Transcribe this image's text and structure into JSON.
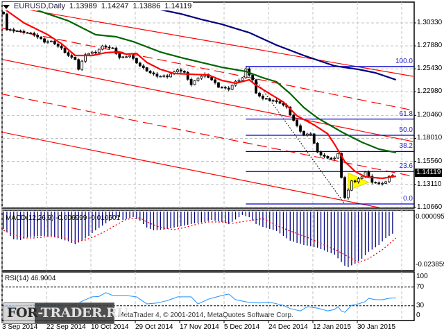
{
  "header": {
    "symbol": "EURUSD,Daily",
    "open": "1.13989",
    "high": "1.14247",
    "low": "1.13886",
    "close": "1.14119"
  },
  "price_axis": [
    "1.30330",
    "1.27880",
    "1.25430",
    "1.22980",
    "1.20460",
    "1.18010",
    "1.15560",
    "1.13110",
    "1.10660"
  ],
  "current_price": "1.14119",
  "macd": {
    "label": "MACD(12,26,9) -0.006999 -0.010601",
    "axis_top": "0.000095",
    "axis_bottom": "-0.023859"
  },
  "rsi": {
    "label": "RSI(14) 46.9004",
    "axis": [
      "100",
      "70",
      "30",
      "0"
    ]
  },
  "dates": [
    "3 Sep 2014",
    "22 Sep 2014",
    "10 Oct 2014",
    "29 Oct 2014",
    "17 Nov 2014",
    "5 Dec 2014",
    "24 Dec 2014",
    "12 Jan 2015",
    "30 Jan 2015"
  ],
  "watermark": {
    "part1": "FOR",
    "part2": "-TRADER.RU"
  },
  "copyright": "MetaTrader 4, © 2001-2014, MetaQuotes Software Corp.",
  "colors": {
    "ma_fast": "#ff0000",
    "ma_mid": "#006400",
    "ma_slow": "#000080",
    "channel": "#ff0000",
    "fib": "#0000cc",
    "macd_hist": "#000080",
    "macd_signal": "#ff0000",
    "rsi": "#1e90ff"
  },
  "chart_data": {
    "type": "candlestick",
    "title": "EURUSD,Daily",
    "bars": 115,
    "ylim": [
      1.1,
      1.32
    ],
    "close_anchors": [
      [
        0,
        1.3129
      ],
      [
        1,
        1.2959
      ],
      [
        5,
        1.2944
      ],
      [
        9,
        1.2907
      ],
      [
        12,
        1.2833
      ],
      [
        14,
        1.2833
      ],
      [
        17,
        1.2759
      ],
      [
        19,
        1.2685
      ],
      [
        21,
        1.2648
      ],
      [
        22,
        1.2537
      ],
      [
        24,
        1.27
      ],
      [
        27,
        1.2722
      ],
      [
        29,
        1.2781
      ],
      [
        32,
        1.2759
      ],
      [
        34,
        1.2663
      ],
      [
        37,
        1.2685
      ],
      [
        40,
        1.2574
      ],
      [
        43,
        1.25
      ],
      [
        45,
        1.2463
      ],
      [
        48,
        1.2463
      ],
      [
        51,
        1.2537
      ],
      [
        53,
        1.25
      ],
      [
        55,
        1.2374
      ],
      [
        57,
        1.2448
      ],
      [
        59,
        1.2478
      ],
      [
        61,
        1.2426
      ],
      [
        63,
        1.2352
      ],
      [
        66,
        1.233
      ],
      [
        68,
        1.2404
      ],
      [
        70,
        1.2448
      ],
      [
        71,
        1.2537
      ],
      [
        73,
        1.2426
      ],
      [
        74,
        1.2278
      ],
      [
        76,
        1.2226
      ],
      [
        79,
        1.2204
      ],
      [
        81,
        1.2181
      ],
      [
        83,
        1.213
      ],
      [
        84,
        1.2056
      ],
      [
        86,
        1.193
      ],
      [
        88,
        1.1834
      ],
      [
        90,
        1.1849
      ],
      [
        92,
        1.1649
      ],
      [
        95,
        1.159
      ],
      [
        97,
        1.159
      ],
      [
        98,
        1.1634
      ],
      [
        99,
        1.139
      ],
      [
        100,
        1.1168
      ],
      [
        101,
        1.1242
      ],
      [
        102,
        1.1353
      ],
      [
        103,
        1.1338
      ],
      [
        105,
        1.139
      ],
      [
        106,
        1.1442
      ],
      [
        108,
        1.1338
      ],
      [
        110,
        1.1316
      ],
      [
        112,
        1.1338
      ],
      [
        113,
        1.139
      ],
      [
        114,
        1.14119
      ]
    ],
    "ma_fast": [
      [
        0,
        1.3188
      ],
      [
        6,
        1.3033
      ],
      [
        13,
        1.2907
      ],
      [
        17,
        1.2811
      ],
      [
        21,
        1.2685
      ],
      [
        26,
        1.2685
      ],
      [
        30,
        1.2715
      ],
      [
        33,
        1.2722
      ],
      [
        36,
        1.27
      ],
      [
        39,
        1.2707
      ],
      [
        42,
        1.2611
      ],
      [
        46,
        1.2537
      ],
      [
        50,
        1.2493
      ],
      [
        55,
        1.2485
      ],
      [
        60,
        1.2478
      ],
      [
        64,
        1.2419
      ],
      [
        68,
        1.2389
      ],
      [
        72,
        1.2426
      ],
      [
        74,
        1.2367
      ],
      [
        78,
        1.2278
      ],
      [
        82,
        1.2189
      ],
      [
        86,
        1.2041
      ],
      [
        91,
        1.1945
      ],
      [
        95,
        1.1849
      ],
      [
        97,
        1.1738
      ],
      [
        100,
        1.1553
      ],
      [
        103,
        1.1449
      ],
      [
        106,
        1.139
      ],
      [
        111,
        1.1375
      ],
      [
        115,
        1.1397
      ]
    ],
    "ma_mid": [
      [
        10,
        1.3166
      ],
      [
        19,
        1.3055
      ],
      [
        27,
        1.2907
      ],
      [
        33,
        1.2885
      ],
      [
        38,
        1.2833
      ],
      [
        46,
        1.2722
      ],
      [
        52,
        1.2663
      ],
      [
        58,
        1.2611
      ],
      [
        64,
        1.2559
      ],
      [
        71,
        1.2515
      ],
      [
        76,
        1.2448
      ],
      [
        80,
        1.2404
      ],
      [
        84,
        1.2278
      ],
      [
        88,
        1.213
      ],
      [
        92,
        1.2019
      ],
      [
        99,
        1.1871
      ],
      [
        105,
        1.176
      ],
      [
        110,
        1.1686
      ],
      [
        115,
        1.1649
      ]
    ],
    "ma_slow": [
      [
        46,
        1.3174
      ],
      [
        52,
        1.3129
      ],
      [
        58,
        1.307
      ],
      [
        64,
        1.3018
      ],
      [
        72,
        1.2929
      ],
      [
        80,
        1.2796
      ],
      [
        88,
        1.2685
      ],
      [
        97,
        1.2574
      ],
      [
        104,
        1.2537
      ],
      [
        109,
        1.25
      ],
      [
        115,
        1.2426
      ]
    ],
    "channel_lines": [
      {
        "style": "solid",
        "from": [
          -1,
          1.3225
        ],
        "to": [
          120,
          1.2463
        ]
      },
      {
        "style": "dashed",
        "from": [
          -1,
          1.2981
        ],
        "to": [
          120,
          1.21
        ]
      },
      {
        "style": "solid",
        "from": [
          -1,
          1.2648
        ],
        "to": [
          120,
          1.1767
        ]
      },
      {
        "style": "dashed",
        "from": [
          -1,
          1.2278
        ],
        "to": [
          120,
          1.1397
        ]
      },
      {
        "style": "solid",
        "from": [
          -1,
          1.1871
        ],
        "to": [
          120,
          1.099
        ]
      }
    ],
    "fibonacci": {
      "from_bar": 71,
      "high": 1.2567,
      "low": 1.1101,
      "levels": [
        {
          "label": "100.0",
          "ratio": 1.0
        },
        {
          "label": "61.8",
          "ratio": 0.618
        },
        {
          "label": "50.0",
          "ratio": 0.5
        },
        {
          "label": "38.2",
          "ratio": 0.382
        },
        {
          "label": "23.6",
          "ratio": 0.236
        },
        {
          "label": "0.0",
          "ratio": 0.0
        }
      ]
    },
    "trendline": {
      "from": [
        71,
        1.2567
      ],
      "to": [
        100,
        1.1101
      ]
    },
    "triangle": [
      [
        101,
        1.1434
      ],
      [
        107,
        1.1331
      ],
      [
        101,
        1.1248
      ]
    ],
    "macd_hist": [
      [
        0,
        -0.0077
      ],
      [
        1,
        -0.0092
      ],
      [
        2,
        -0.0108
      ],
      [
        3,
        -0.0123
      ],
      [
        5,
        -0.0126
      ],
      [
        7,
        -0.0114
      ],
      [
        11,
        -0.0108
      ],
      [
        14,
        -0.0108
      ],
      [
        17,
        -0.0123
      ],
      [
        19,
        -0.0132
      ],
      [
        21,
        -0.0145
      ],
      [
        23,
        -0.0129
      ],
      [
        25,
        -0.0108
      ],
      [
        27,
        -0.0083
      ],
      [
        30,
        -0.0052
      ],
      [
        32,
        -0.0031
      ],
      [
        34,
        -0.0025
      ],
      [
        35,
        -0.0037
      ],
      [
        38,
        -0.0025
      ],
      [
        40,
        -0.004
      ],
      [
        42,
        -0.0071
      ],
      [
        44,
        -0.0083
      ],
      [
        47,
        -0.008
      ],
      [
        50,
        -0.0071
      ],
      [
        53,
        -0.0062
      ],
      [
        56,
        -0.0052
      ],
      [
        59,
        -0.0046
      ],
      [
        61,
        -0.0037
      ],
      [
        64,
        -0.0046
      ],
      [
        66,
        -0.0055
      ],
      [
        70,
        -0.0015
      ],
      [
        72,
        -0.0025
      ],
      [
        74,
        -0.0055
      ],
      [
        76,
        -0.0068
      ],
      [
        80,
        -0.0086
      ],
      [
        84,
        -0.0129
      ],
      [
        88,
        -0.0148
      ],
      [
        92,
        -0.016
      ],
      [
        97,
        -0.0191
      ],
      [
        100,
        -0.024
      ],
      [
        101,
        -0.0246
      ],
      [
        103,
        -0.0231
      ],
      [
        105,
        -0.0209
      ],
      [
        107,
        -0.0178
      ],
      [
        110,
        -0.0148
      ],
      [
        112,
        -0.0117
      ],
      [
        114,
        -0.0098
      ],
      [
        115,
        -0.0077
      ]
    ],
    "macd_signal": [
      [
        0,
        -0.0083
      ],
      [
        3,
        -0.0102
      ],
      [
        6,
        -0.0117
      ],
      [
        9,
        -0.0117
      ],
      [
        13,
        -0.0111
      ],
      [
        17,
        -0.0114
      ],
      [
        19,
        -0.0123
      ],
      [
        21,
        -0.0132
      ],
      [
        24,
        -0.0126
      ],
      [
        27,
        -0.0108
      ],
      [
        30,
        -0.0086
      ],
      [
        32,
        -0.0068
      ],
      [
        36,
        -0.0034
      ],
      [
        40,
        -0.0028
      ],
      [
        42,
        -0.0046
      ],
      [
        46,
        -0.0071
      ],
      [
        50,
        -0.008
      ],
      [
        53,
        -0.0071
      ],
      [
        57,
        -0.0055
      ],
      [
        60,
        -0.0046
      ],
      [
        64,
        -0.0046
      ],
      [
        67,
        -0.0052
      ],
      [
        72,
        -0.004
      ],
      [
        76,
        -0.0031
      ],
      [
        80,
        -0.0062
      ],
      [
        84,
        -0.0086
      ],
      [
        89,
        -0.0114
      ],
      [
        94,
        -0.0148
      ],
      [
        98,
        -0.0175
      ],
      [
        101,
        -0.02
      ],
      [
        104,
        -0.0225
      ],
      [
        107,
        -0.0209
      ],
      [
        111,
        -0.0169
      ],
      [
        115,
        -0.0117
      ]
    ],
    "rsi_values": [
      [
        0,
        28
      ],
      [
        7,
        31
      ],
      [
        13,
        34
      ],
      [
        19,
        30
      ],
      [
        22,
        36
      ],
      [
        24,
        43
      ],
      [
        26,
        49
      ],
      [
        28,
        50
      ],
      [
        30,
        58
      ],
      [
        32,
        52
      ],
      [
        36,
        52
      ],
      [
        39,
        49
      ],
      [
        42,
        34
      ],
      [
        45,
        36
      ],
      [
        48,
        41
      ],
      [
        51,
        49
      ],
      [
        55,
        49
      ],
      [
        57,
        34
      ],
      [
        60,
        44
      ],
      [
        64,
        52
      ],
      [
        66,
        55
      ],
      [
        68,
        43
      ],
      [
        72,
        37
      ],
      [
        75,
        36
      ],
      [
        77,
        37
      ],
      [
        79,
        36
      ],
      [
        82,
        31
      ],
      [
        84,
        24
      ],
      [
        87,
        19
      ],
      [
        89,
        28
      ],
      [
        92,
        25
      ],
      [
        95,
        19
      ],
      [
        97,
        22
      ],
      [
        98,
        28
      ],
      [
        99,
        19
      ],
      [
        100,
        16
      ],
      [
        102,
        31
      ],
      [
        104,
        34
      ],
      [
        106,
        39
      ],
      [
        107,
        46
      ],
      [
        109,
        43
      ],
      [
        111,
        43
      ],
      [
        113,
        46
      ],
      [
        115,
        46.9
      ]
    ],
    "rsi_levels": [
      70,
      30
    ]
  }
}
